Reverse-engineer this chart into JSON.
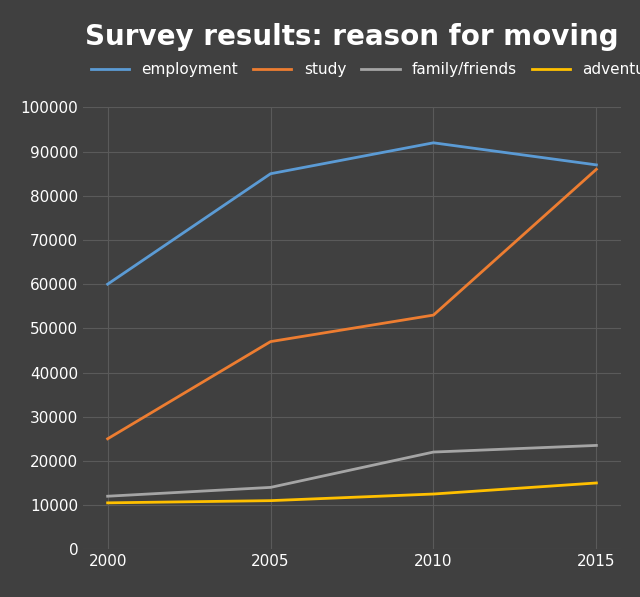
{
  "title": "Survey results: reason for moving",
  "years": [
    2000,
    2005,
    2010,
    2015
  ],
  "series": [
    {
      "label": "employment",
      "color": "#5b9bd5",
      "values": [
        60000,
        85000,
        92000,
        87000
      ]
    },
    {
      "label": "study",
      "color": "#ed7d31",
      "values": [
        25000,
        47000,
        53000,
        86000
      ]
    },
    {
      "label": "family/friends",
      "color": "#a5a5a5",
      "values": [
        12000,
        14000,
        22000,
        23500
      ]
    },
    {
      "label": "adventure",
      "color": "#ffc000",
      "values": [
        10500,
        11000,
        12500,
        15000
      ]
    }
  ],
  "ylim": [
    0,
    100000
  ],
  "yticks": [
    0,
    10000,
    20000,
    30000,
    40000,
    50000,
    60000,
    70000,
    80000,
    90000,
    100000
  ],
  "xticks": [
    2000,
    2005,
    2010,
    2015
  ],
  "background_color": "#404040",
  "grid_color": "#5a5a5a",
  "text_color": "#ffffff",
  "title_fontsize": 20,
  "legend_fontsize": 11,
  "tick_fontsize": 11,
  "line_width": 2.0
}
